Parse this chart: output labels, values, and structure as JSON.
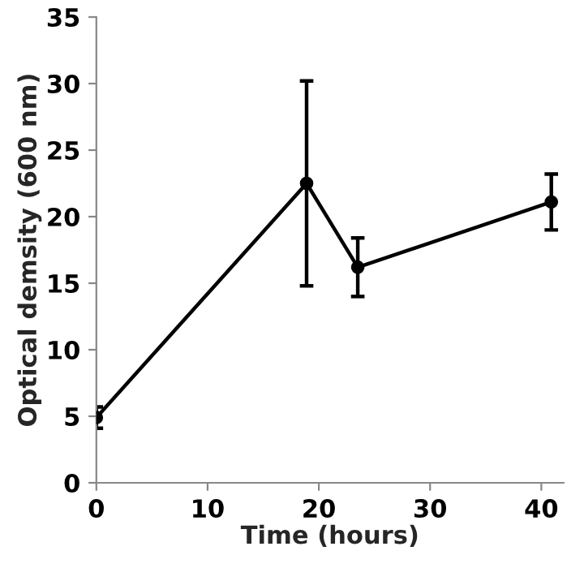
{
  "chart_data": {
    "type": "line",
    "xlabel": "Time (hours)",
    "ylabel": "Optical demsity (600 nm)",
    "x": [
      0,
      18.9,
      23.5,
      40.9
    ],
    "series": [
      {
        "color": "#000000",
        "values": [
          4.9,
          22.5,
          16.2,
          21.1
        ],
        "errors": [
          0.8,
          7.7,
          2.2,
          2.1
        ]
      }
    ],
    "xlim": [
      0,
      42
    ],
    "xticks": [
      0,
      10,
      20,
      30,
      40
    ],
    "ylim": [
      0,
      35
    ],
    "yticks": [
      0,
      5,
      10,
      15,
      20,
      25,
      30,
      35
    ],
    "grid": false,
    "legend": false,
    "marker": "circle",
    "line_style": "solid"
  }
}
